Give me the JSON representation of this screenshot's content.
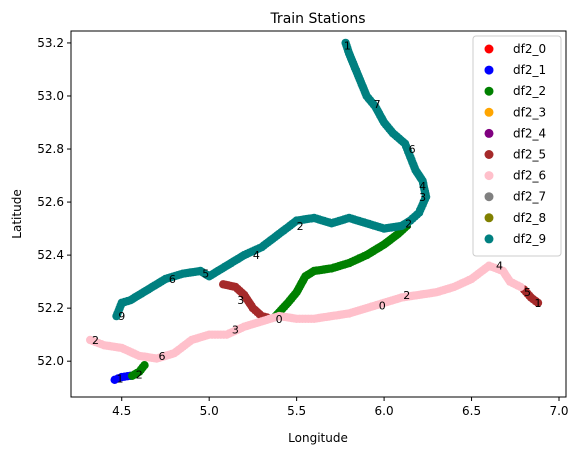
{
  "chart_data": {
    "type": "scatter",
    "title": "Train Stations",
    "xlabel": "Longitude",
    "ylabel": "Latitude",
    "xlim": [
      4.21,
      7.04
    ],
    "ylim": [
      51.865,
      53.245
    ],
    "xticks": [
      4.5,
      5.0,
      5.5,
      6.0,
      6.5,
      7.0
    ],
    "xtick_labels": [
      "4.5",
      "5.0",
      "5.5",
      "6.0",
      "6.5",
      "7.0"
    ],
    "yticks": [
      52.0,
      52.2,
      52.4,
      52.6,
      52.8,
      53.0,
      53.2
    ],
    "ytick_labels": [
      "52.0",
      "52.2",
      "52.4",
      "52.6",
      "52.8",
      "53.0",
      "53.2"
    ],
    "grid": false,
    "legend_position": "top-right",
    "series": [
      {
        "name": "df2_0",
        "color": "#ff0000",
        "points": []
      },
      {
        "name": "df2_1",
        "color": "#0000ff",
        "points": [
          [
            4.46,
            51.93
          ],
          [
            4.5,
            51.94
          ],
          [
            4.55,
            51.945
          ]
        ]
      },
      {
        "name": "df2_2",
        "color": "#008000",
        "points": [
          [
            4.56,
            51.945
          ],
          [
            4.6,
            51.96
          ],
          [
            4.63,
            51.985
          ],
          [
            5.38,
            52.17
          ],
          [
            5.45,
            52.22
          ],
          [
            5.5,
            52.26
          ],
          [
            5.55,
            52.32
          ],
          [
            5.6,
            52.34
          ],
          [
            5.7,
            52.35
          ],
          [
            5.8,
            52.37
          ],
          [
            5.9,
            52.4
          ],
          [
            6.0,
            52.44
          ],
          [
            6.08,
            52.48
          ],
          [
            6.13,
            52.51
          ]
        ]
      },
      {
        "name": "df2_3",
        "color": "#ffa500",
        "points": []
      },
      {
        "name": "df2_4",
        "color": "#800080",
        "points": []
      },
      {
        "name": "df2_5",
        "color": "#a52a2a",
        "points": [
          [
            5.08,
            52.29
          ],
          [
            5.15,
            52.28
          ],
          [
            5.2,
            52.25
          ],
          [
            5.25,
            52.2
          ],
          [
            5.3,
            52.17
          ],
          [
            5.33,
            52.165
          ],
          [
            6.8,
            52.27
          ],
          [
            6.84,
            52.24
          ],
          [
            6.88,
            52.22
          ]
        ]
      },
      {
        "name": "df2_6",
        "color": "#ffc0cb",
        "points": [
          [
            4.32,
            52.08
          ],
          [
            4.4,
            52.06
          ],
          [
            4.5,
            52.05
          ],
          [
            4.6,
            52.02
          ],
          [
            4.7,
            52.01
          ],
          [
            4.8,
            52.03
          ],
          [
            4.9,
            52.08
          ],
          [
            5.0,
            52.1
          ],
          [
            5.1,
            52.1
          ],
          [
            5.2,
            52.13
          ],
          [
            5.3,
            52.15
          ],
          [
            5.4,
            52.17
          ],
          [
            5.5,
            52.16
          ],
          [
            5.6,
            52.16
          ],
          [
            5.7,
            52.17
          ],
          [
            5.8,
            52.18
          ],
          [
            5.9,
            52.2
          ],
          [
            6.0,
            52.22
          ],
          [
            6.1,
            52.24
          ],
          [
            6.2,
            52.25
          ],
          [
            6.3,
            52.26
          ],
          [
            6.4,
            52.28
          ],
          [
            6.5,
            52.31
          ],
          [
            6.6,
            52.36
          ],
          [
            6.68,
            52.34
          ],
          [
            6.72,
            52.3
          ],
          [
            6.78,
            52.28
          ]
        ]
      },
      {
        "name": "df2_7",
        "color": "#808080",
        "points": []
      },
      {
        "name": "df2_8",
        "color": "#808000",
        "points": []
      },
      {
        "name": "df2_9",
        "color": "#008080",
        "points": [
          [
            4.47,
            52.17
          ],
          [
            4.5,
            52.22
          ],
          [
            4.55,
            52.23
          ],
          [
            4.65,
            52.27
          ],
          [
            4.75,
            52.31
          ],
          [
            4.85,
            52.33
          ],
          [
            4.95,
            52.34
          ],
          [
            5.0,
            52.32
          ],
          [
            5.1,
            52.36
          ],
          [
            5.2,
            52.4
          ],
          [
            5.3,
            52.43
          ],
          [
            5.4,
            52.48
          ],
          [
            5.5,
            52.53
          ],
          [
            5.6,
            52.54
          ],
          [
            5.7,
            52.52
          ],
          [
            5.8,
            52.54
          ],
          [
            5.9,
            52.52
          ],
          [
            6.0,
            52.5
          ],
          [
            6.1,
            52.51
          ],
          [
            6.15,
            52.53
          ],
          [
            6.2,
            52.56
          ],
          [
            6.24,
            52.62
          ],
          [
            6.22,
            52.68
          ],
          [
            6.18,
            52.72
          ],
          [
            6.15,
            52.77
          ],
          [
            6.12,
            52.82
          ],
          [
            6.05,
            52.86
          ],
          [
            6.0,
            52.9
          ],
          [
            5.95,
            52.96
          ],
          [
            5.9,
            53.0
          ],
          [
            5.85,
            53.08
          ],
          [
            5.8,
            53.16
          ],
          [
            5.78,
            53.2
          ]
        ]
      }
    ],
    "annotations": [
      {
        "text": "1",
        "x": 5.79,
        "y": 53.19
      },
      {
        "text": "7",
        "x": 5.96,
        "y": 52.97
      },
      {
        "text": "6",
        "x": 6.16,
        "y": 52.8
      },
      {
        "text": "4",
        "x": 6.22,
        "y": 52.66
      },
      {
        "text": "3",
        "x": 6.22,
        "y": 52.62
      },
      {
        "text": "2",
        "x": 6.14,
        "y": 52.52
      },
      {
        "text": "2",
        "x": 5.52,
        "y": 52.51
      },
      {
        "text": "4",
        "x": 5.27,
        "y": 52.4
      },
      {
        "text": "5",
        "x": 4.98,
        "y": 52.33
      },
      {
        "text": "6",
        "x": 4.79,
        "y": 52.31
      },
      {
        "text": "9",
        "x": 4.5,
        "y": 52.17
      },
      {
        "text": "4",
        "x": 6.66,
        "y": 52.36
      },
      {
        "text": "2",
        "x": 6.13,
        "y": 52.25
      },
      {
        "text": "5",
        "x": 6.82,
        "y": 52.26
      },
      {
        "text": "1",
        "x": 6.88,
        "y": 52.22
      },
      {
        "text": "0",
        "x": 5.99,
        "y": 52.21
      },
      {
        "text": "3",
        "x": 5.18,
        "y": 52.23
      },
      {
        "text": "3",
        "x": 5.15,
        "y": 52.12
      },
      {
        "text": "0",
        "x": 5.4,
        "y": 52.16
      },
      {
        "text": "6",
        "x": 4.73,
        "y": 52.02
      },
      {
        "text": "2",
        "x": 4.35,
        "y": 52.08
      },
      {
        "text": "2",
        "x": 4.6,
        "y": 51.95
      },
      {
        "text": "1",
        "x": 4.49,
        "y": 51.935
      }
    ]
  }
}
